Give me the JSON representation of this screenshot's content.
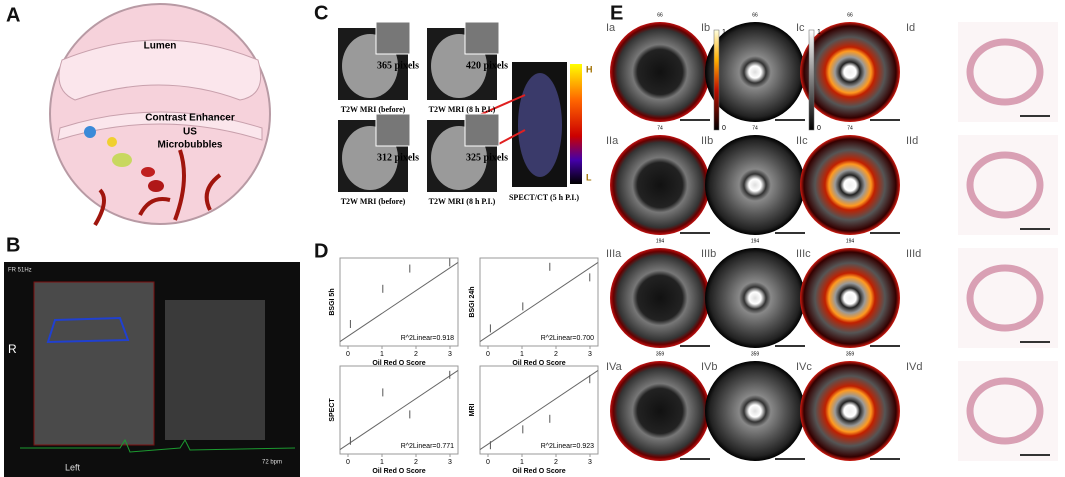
{
  "panel_a": {
    "label": "A",
    "lumen": "Lumen",
    "enhancer": "Contrast Enhancer",
    "us": "US",
    "microbubbles": "Microbubbles"
  },
  "panel_b": {
    "label": "B",
    "side": "R",
    "position": "Left",
    "frame_rate": "FR 51Hz",
    "heart_rate": "72 bpm"
  },
  "panel_c": {
    "label": "C",
    "images": [
      {
        "caption": "T2W MRI (before)",
        "pixels": "365 pixels"
      },
      {
        "caption": "T2W MRI (8 h P.I.)",
        "pixels": "420 pixels"
      },
      {
        "caption": "T2W MRI (before)",
        "pixels": "312 pixels"
      },
      {
        "caption": "T2W MRI (8 h P.I.)",
        "pixels": "325 pixels"
      }
    ],
    "spect_caption": "SPECT/CT (5 h P.I.)",
    "scale_high": "H",
    "scale_low": "L"
  },
  "panel_d": {
    "label": "D",
    "x_label": "Oil Red O Score",
    "x_ticks": [
      0,
      1,
      2,
      3
    ],
    "plots": [
      {
        "y_label": "BSGI 5h",
        "r2": "R^2Linear=0.918"
      },
      {
        "y_label": "BSGI 24h",
        "r2": "R^2Linear=0.700"
      },
      {
        "y_label": "SPECT",
        "r2": "R^2Linear=0.771"
      },
      {
        "y_label": "MRI",
        "r2": "R^2Linear=0.923"
      }
    ]
  },
  "panel_e": {
    "label": "E",
    "colorbars": [
      {
        "max": "1",
        "min": "0"
      },
      {
        "max": "1",
        "min": "0"
      }
    ],
    "rows": [
      {
        "labels": [
          "Ia",
          "Ib",
          "Ic",
          "Id"
        ],
        "frame": "66"
      },
      {
        "labels": [
          "IIa",
          "IIb",
          "IIc",
          "IId"
        ],
        "frame": "74"
      },
      {
        "labels": [
          "IIIa",
          "IIIb",
          "IIIc",
          "IIId"
        ],
        "frame": "194"
      },
      {
        "labels": [
          "IVa",
          "IVb",
          "IVc",
          "IVd"
        ],
        "frame": "359"
      }
    ]
  }
}
